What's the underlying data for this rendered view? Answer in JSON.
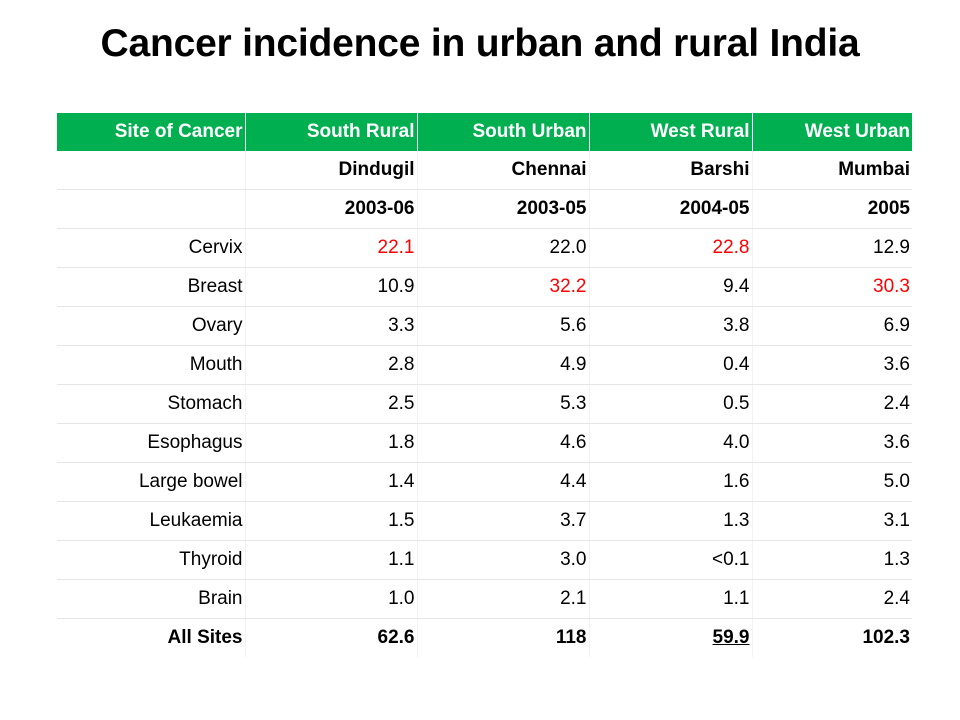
{
  "title": "Cancer incidence in urban and rural India",
  "table": {
    "headers": [
      "Site of Cancer",
      "South Rural",
      "South Urban",
      "West Rural",
      "West Urban"
    ],
    "cities": [
      "",
      "Dindugil",
      "Chennai",
      "Barshi",
      "Mumbai"
    ],
    "periods": [
      "",
      "2003-06",
      "2003-05",
      "2004-05",
      "2005"
    ],
    "rows": [
      {
        "site": "Cervix",
        "values": [
          "22.1",
          "22.0",
          "22.8",
          "12.9"
        ]
      },
      {
        "site": "Breast",
        "values": [
          "10.9",
          "32.2",
          "9.4",
          "30.3"
        ]
      },
      {
        "site": "Ovary",
        "values": [
          "3.3",
          "5.6",
          "3.8",
          "6.9"
        ]
      },
      {
        "site": "Mouth",
        "values": [
          "2.8",
          "4.9",
          "0.4",
          "3.6"
        ]
      },
      {
        "site": "Stomach",
        "values": [
          "2.5",
          "5.3",
          "0.5",
          "2.4"
        ]
      },
      {
        "site": "Esophagus",
        "values": [
          "1.8",
          "4.6",
          "4.0",
          "3.6"
        ]
      },
      {
        "site": "Large bowel",
        "values": [
          "1.4",
          "4.4",
          "1.6",
          "5.0"
        ]
      },
      {
        "site": "Leukaemia",
        "values": [
          "1.5",
          "3.7",
          "1.3",
          "3.1"
        ]
      },
      {
        "site": "Thyroid",
        "values": [
          "1.1",
          "3.0",
          "<0.1",
          "1.3"
        ]
      },
      {
        "site": "Brain",
        "values": [
          "1.0",
          "2.1",
          "1.1",
          "2.4"
        ]
      }
    ],
    "total": {
      "site": "All Sites",
      "values": [
        "62.6",
        "118",
        "59.9",
        "102.3"
      ]
    }
  },
  "colors": {
    "header_background": "#00b050",
    "header_text": "#ffffff",
    "highlight_text": "#ff0000"
  }
}
